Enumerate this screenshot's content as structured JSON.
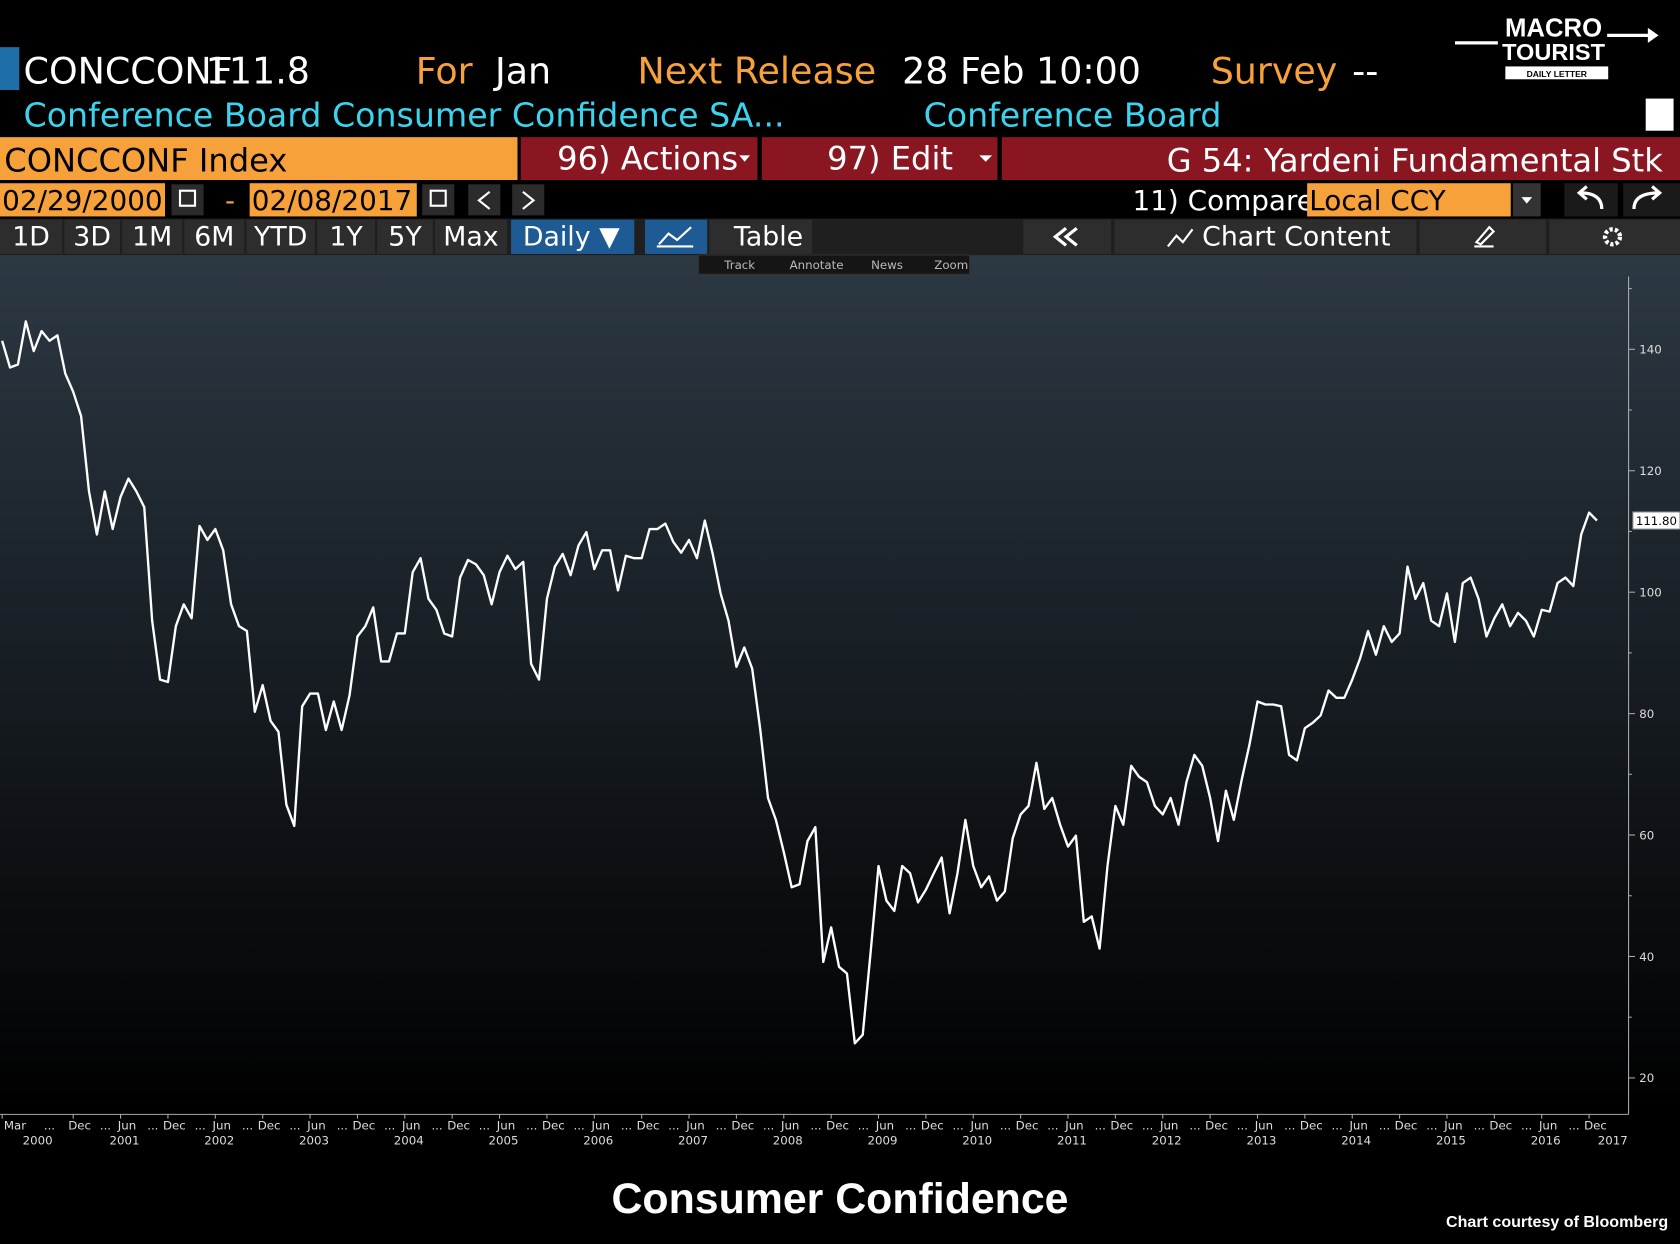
{
  "header": {
    "ticker": "CONCCONF",
    "last": "111.8",
    "for_label": "For",
    "for_value": "Jan",
    "next_release_label": "Next Release",
    "next_release_value": "28 Feb 10:00",
    "survey_label": "Survey",
    "survey_value": "--",
    "description": "Conference Board Consumer Confidence SA...",
    "source": "Conference Board"
  },
  "logo": {
    "line1": "MACRO",
    "line2": "TOURIST",
    "tagline": "DAILY LETTER"
  },
  "toolbar": {
    "security": "CONCCONF Index",
    "actions": "96) Actions",
    "edit": "97) Edit",
    "launchpad": "G 54: Yardeni Fundamental Stk",
    "start_date": "02/29/2000",
    "date_separator": "-",
    "end_date": "02/08/2017",
    "compare": "11) Compare",
    "currency": "Local CCY",
    "periods": [
      "1D",
      "3D",
      "1M",
      "6M",
      "YTD",
      "1Y",
      "5Y",
      "Max"
    ],
    "frequency": "Daily ▼",
    "table": "Table",
    "chart_content": "Chart Content",
    "tools": [
      "Track",
      "Annotate",
      "News",
      "Zoom"
    ]
  },
  "chart_data": {
    "type": "line",
    "color": "#ffffff",
    "axis_side": "right",
    "x": [
      "2000-03",
      "2000-04",
      "2000-05",
      "2000-06",
      "2000-07",
      "2000-08",
      "2000-09",
      "2000-10",
      "2000-11",
      "2000-12",
      "2001-01",
      "2001-02",
      "2001-03",
      "2001-04",
      "2001-05",
      "2001-06",
      "2001-07",
      "2001-08",
      "2001-09",
      "2001-10",
      "2001-11",
      "2001-12",
      "2002-01",
      "2002-02",
      "2002-03",
      "2002-04",
      "2002-05",
      "2002-06",
      "2002-07",
      "2002-08",
      "2002-09",
      "2002-10",
      "2002-11",
      "2002-12",
      "2003-01",
      "2003-02",
      "2003-03",
      "2003-04",
      "2003-05",
      "2003-06",
      "2003-07",
      "2003-08",
      "2003-09",
      "2003-10",
      "2003-11",
      "2003-12",
      "2004-01",
      "2004-02",
      "2004-03",
      "2004-04",
      "2004-05",
      "2004-06",
      "2004-07",
      "2004-08",
      "2004-09",
      "2004-10",
      "2004-11",
      "2004-12",
      "2005-01",
      "2005-02",
      "2005-03",
      "2005-04",
      "2005-05",
      "2005-06",
      "2005-07",
      "2005-08",
      "2005-09",
      "2005-10",
      "2005-11",
      "2005-12",
      "2006-01",
      "2006-02",
      "2006-03",
      "2006-04",
      "2006-05",
      "2006-06",
      "2006-07",
      "2006-08",
      "2006-09",
      "2006-10",
      "2006-11",
      "2006-12",
      "2007-01",
      "2007-02",
      "2007-03",
      "2007-04",
      "2007-05",
      "2007-06",
      "2007-07",
      "2007-08",
      "2007-09",
      "2007-10",
      "2007-11",
      "2007-12",
      "2008-01",
      "2008-02",
      "2008-03",
      "2008-04",
      "2008-05",
      "2008-06",
      "2008-07",
      "2008-08",
      "2008-09",
      "2008-10",
      "2008-11",
      "2008-12",
      "2009-01",
      "2009-02",
      "2009-03",
      "2009-04",
      "2009-05",
      "2009-06",
      "2009-07",
      "2009-08",
      "2009-09",
      "2009-10",
      "2009-11",
      "2009-12",
      "2010-01",
      "2010-02",
      "2010-03",
      "2010-04",
      "2010-05",
      "2010-06",
      "2010-07",
      "2010-08",
      "2010-09",
      "2010-10",
      "2010-11",
      "2010-12",
      "2011-01",
      "2011-02",
      "2011-03",
      "2011-04",
      "2011-05",
      "2011-06",
      "2011-07",
      "2011-08",
      "2011-09",
      "2011-10",
      "2011-11",
      "2011-12",
      "2012-01",
      "2012-02",
      "2012-03",
      "2012-04",
      "2012-05",
      "2012-06",
      "2012-07",
      "2012-08",
      "2012-09",
      "2012-10",
      "2012-11",
      "2012-12",
      "2013-01",
      "2013-02",
      "2013-03",
      "2013-04",
      "2013-05",
      "2013-06",
      "2013-07",
      "2013-08",
      "2013-09",
      "2013-10",
      "2013-11",
      "2013-12",
      "2014-01",
      "2014-02",
      "2014-03",
      "2014-04",
      "2014-05",
      "2014-06",
      "2014-07",
      "2014-08",
      "2014-09",
      "2014-10",
      "2014-11",
      "2014-12",
      "2015-01",
      "2015-02",
      "2015-03",
      "2015-04",
      "2015-05",
      "2015-06",
      "2015-07",
      "2015-08",
      "2015-09",
      "2015-10",
      "2015-11",
      "2015-12",
      "2016-01",
      "2016-02",
      "2016-03",
      "2016-04",
      "2016-05",
      "2016-06",
      "2016-07",
      "2016-08",
      "2016-09",
      "2016-10",
      "2016-11",
      "2016-12",
      "2017-01"
    ],
    "values": [
      141.4,
      137,
      137.5,
      144.6,
      139.7,
      143,
      141.4,
      142.3,
      136,
      133,
      129,
      116.6,
      109.5,
      116.6,
      110.4,
      115.7,
      118.7,
      116.6,
      114,
      95.3,
      85.6,
      85.2,
      94.4,
      98,
      95.7,
      110.9,
      108.6,
      110.4,
      106.9,
      98,
      94.4,
      93.6,
      80.3,
      84.7,
      78.8,
      77,
      65,
      61.5,
      81.2,
      83.3,
      83.3,
      77.3,
      82,
      77.3,
      83,
      92.7,
      94.4,
      97.5,
      88.6,
      88.6,
      93.2,
      93.2,
      103.3,
      105.6,
      98.9,
      97.1,
      93.2,
      92.7,
      102.4,
      105.3,
      104.6,
      102.8,
      98,
      103.3,
      106,
      103.8,
      105,
      88.2,
      85.6,
      98.9,
      104.2,
      106.3,
      102.8,
      107.7,
      109.9,
      103.8,
      106.9,
      106.9,
      100.3,
      106,
      105.6,
      105.6,
      110.4,
      110.4,
      111.3,
      108.3,
      106.5,
      108.6,
      105.6,
      111.8,
      106.3,
      99.8,
      95.3,
      87.7,
      90.9,
      87.4,
      77.6,
      66.1,
      62.5,
      57.2,
      51.4,
      51.9,
      59,
      61.3,
      39.1,
      44.8,
      38.3,
      37.2,
      25.7,
      27.1,
      40.7,
      54.9,
      49.2,
      47.5,
      54.9,
      53.7,
      48.9,
      51,
      53.7,
      56.3,
      47.1,
      53.7,
      62.5,
      54.9,
      51.4,
      53.2,
      49.2,
      50.7,
      59.5,
      63.4,
      64.8,
      71.9,
      64.3,
      66.1,
      61.7,
      58.1,
      59.9,
      45.7,
      46.6,
      41.3,
      54.9,
      64.8,
      61.7,
      71.4,
      69.6,
      68.7,
      64.8,
      63.4,
      66.1,
      61.7,
      68.7,
      73.2,
      71.4,
      66.1,
      59,
      67.3,
      62.5,
      69.1,
      75,
      82,
      81.5,
      81.5,
      81.2,
      73.2,
      72.3,
      77.6,
      78.5,
      79.7,
      83.8,
      82.6,
      82.6,
      85.6,
      89.1,
      93.6,
      89.7,
      94.4,
      91.8,
      93.2,
      104.2,
      98.9,
      101.5,
      95.3,
      94.4,
      99.8,
      91.8,
      101.5,
      102.4,
      98.9,
      92.7,
      95.7,
      98,
      94.4,
      96.6,
      95.3,
      92.7,
      97.1,
      96.8,
      101.5,
      102.4,
      101,
      109.5,
      113.1,
      111.8
    ],
    "last_value_label": "111.80",
    "xlim": [
      "2000-03",
      "2017-05"
    ],
    "xticks": [
      {
        "value": "2000-03",
        "label": "Mar"
      },
      {
        "value": "2000-12",
        "label": "Dec"
      },
      {
        "value": "2001-06",
        "label": "Jun"
      },
      {
        "value": "2001-12",
        "label": "Dec"
      },
      {
        "value": "2002-06",
        "label": "Jun"
      },
      {
        "value": "2002-12",
        "label": "Dec"
      },
      {
        "value": "2003-06",
        "label": "Jun"
      },
      {
        "value": "2003-12",
        "label": "Dec"
      },
      {
        "value": "2004-06",
        "label": "Jun"
      },
      {
        "value": "2004-12",
        "label": "Dec"
      },
      {
        "value": "2005-06",
        "label": "Jun"
      },
      {
        "value": "2005-12",
        "label": "Dec"
      },
      {
        "value": "2006-06",
        "label": "Jun"
      },
      {
        "value": "2006-12",
        "label": "Dec"
      },
      {
        "value": "2007-06",
        "label": "Jun"
      },
      {
        "value": "2007-12",
        "label": "Dec"
      },
      {
        "value": "2008-06",
        "label": "Jun"
      },
      {
        "value": "2008-12",
        "label": "Dec"
      },
      {
        "value": "2009-06",
        "label": "Jun"
      },
      {
        "value": "2009-12",
        "label": "Dec"
      },
      {
        "value": "2010-06",
        "label": "Jun"
      },
      {
        "value": "2010-12",
        "label": "Dec"
      },
      {
        "value": "2011-06",
        "label": "Jun"
      },
      {
        "value": "2011-12",
        "label": "Dec"
      },
      {
        "value": "2012-06",
        "label": "Jun"
      },
      {
        "value": "2012-12",
        "label": "Dec"
      },
      {
        "value": "2013-06",
        "label": "Jun"
      },
      {
        "value": "2013-12",
        "label": "Dec"
      },
      {
        "value": "2014-06",
        "label": "Jun"
      },
      {
        "value": "2014-12",
        "label": "Dec"
      },
      {
        "value": "2015-06",
        "label": "Jun"
      },
      {
        "value": "2015-12",
        "label": "Dec"
      },
      {
        "value": "2016-06",
        "label": "Jun"
      },
      {
        "value": "2016-12",
        "label": "Dec"
      }
    ],
    "x_tick_separator": "...",
    "year_labels": [
      2000,
      2001,
      2002,
      2003,
      2004,
      2005,
      2006,
      2007,
      2008,
      2009,
      2010,
      2011,
      2012,
      2013,
      2014,
      2015,
      2016,
      2017
    ],
    "ylim": [
      14,
      152
    ],
    "yticks": [
      20,
      40,
      60,
      80,
      100,
      120,
      140
    ],
    "yminorticks": [
      30,
      50,
      70,
      90,
      110,
      130,
      150
    ]
  },
  "footer": {
    "title": "Consumer Confidence",
    "credit": "Chart courtesy of Bloomberg"
  }
}
